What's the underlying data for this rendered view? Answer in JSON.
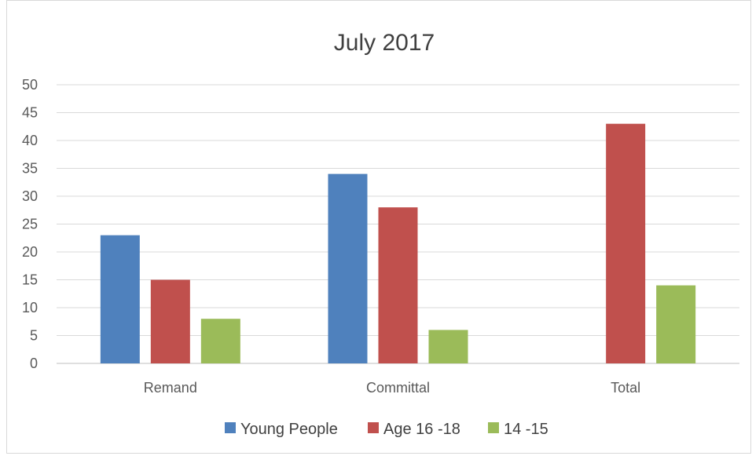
{
  "chart_data": {
    "type": "bar",
    "title": "July 2017",
    "xlabel": "",
    "ylabel": "",
    "categories": [
      "Remand",
      "Committal",
      "Total"
    ],
    "series": [
      {
        "name": "Young People",
        "values": [
          23,
          34,
          null
        ],
        "color": "#4f81bd"
      },
      {
        "name": "Age 16 -18",
        "values": [
          15,
          28,
          43
        ],
        "color": "#c0504d"
      },
      {
        "name": "14 -15",
        "values": [
          8,
          6,
          14
        ],
        "color": "#9bbb59"
      }
    ],
    "ylim": [
      0,
      50
    ],
    "yticks": [
      0,
      5,
      10,
      15,
      20,
      25,
      30,
      35,
      40,
      45,
      50
    ],
    "grid": true,
    "legend": "bottom"
  }
}
